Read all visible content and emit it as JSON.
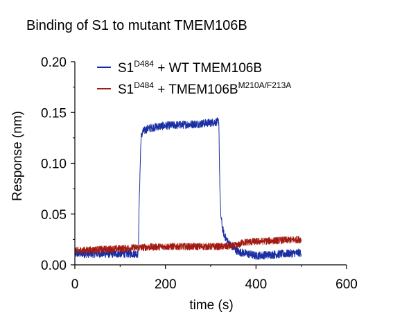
{
  "chart_data": {
    "type": "line",
    "title": "Binding of S1 to mutant TMEM106B",
    "xlabel": "time (s)",
    "ylabel": "Response (nm)",
    "xlim": [
      0,
      600
    ],
    "ylim": [
      0,
      0.2
    ],
    "x_ticks": [
      0,
      200,
      400,
      600
    ],
    "x_tick_labels": [
      "0",
      "200",
      "400",
      "600"
    ],
    "y_ticks": [
      0,
      0.05,
      0.1,
      0.15,
      0.2
    ],
    "y_tick_labels": [
      "0.00",
      "0.05",
      "0.10",
      "0.15",
      "0.20"
    ],
    "grid": false,
    "legend_position": "top-right",
    "series": [
      {
        "name_main": "S1",
        "name_sup": "D484",
        "name_rest": " + WT TMEM106B",
        "name_sup2": "",
        "color": "#1a2fa3",
        "x": [
          0,
          140,
          142,
          146,
          150,
          160,
          180,
          200,
          240,
          280,
          318,
          320,
          322,
          326,
          330,
          340,
          350,
          360,
          380,
          400,
          430,
          470,
          500
        ],
        "y": [
          0.011,
          0.011,
          0.06,
          0.125,
          0.131,
          0.134,
          0.136,
          0.137,
          0.138,
          0.139,
          0.141,
          0.08,
          0.05,
          0.036,
          0.029,
          0.021,
          0.017,
          0.013,
          0.011,
          0.009,
          0.01,
          0.011,
          0.012
        ],
        "noise": 0.004
      },
      {
        "name_main": "S1",
        "name_sup": "D484",
        "name_rest": " + TMEM106B",
        "name_sup2": "M210A/F213A",
        "color": "#a31a12",
        "x": [
          0,
          50,
          100,
          140,
          200,
          260,
          318,
          330,
          360,
          370,
          400,
          450,
          500
        ],
        "y": [
          0.014,
          0.015,
          0.016,
          0.017,
          0.018,
          0.018,
          0.018,
          0.018,
          0.019,
          0.022,
          0.023,
          0.024,
          0.025
        ],
        "noise": 0.0035
      }
    ]
  }
}
